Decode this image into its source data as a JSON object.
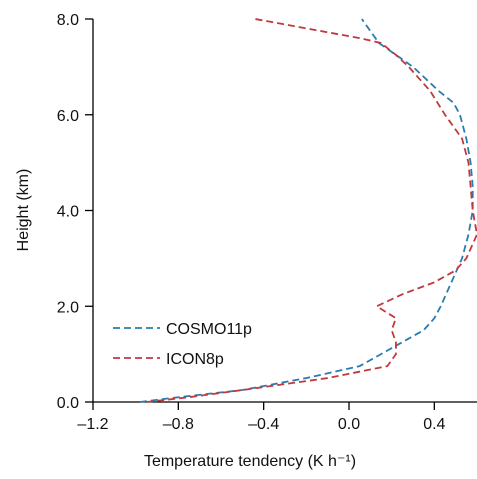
{
  "chart_data": {
    "type": "line",
    "x_label": "Temperature tendency (K h⁻¹)",
    "y_label": "Height (km)",
    "xlim": [
      -1.2,
      0.6
    ],
    "ylim": [
      0,
      8
    ],
    "xticks": [
      {
        "value": -1.2,
        "label": "–1.2"
      },
      {
        "value": -0.8,
        "label": "–0.8"
      },
      {
        "value": -0.4,
        "label": "–0.4"
      },
      {
        "value": 0,
        "label": "0.0"
      },
      {
        "value": 0.4,
        "label": "0.4"
      }
    ],
    "yticks": [
      {
        "value": 0,
        "label": "0.0"
      },
      {
        "value": 2,
        "label": "2.0"
      },
      {
        "value": 4,
        "label": "4.0"
      },
      {
        "value": 6,
        "label": "6.0"
      },
      {
        "value": 8,
        "label": "8.0"
      }
    ],
    "series": [
      {
        "name": "COSMO11p",
        "color": "#2b7bb0",
        "y": [
          0,
          0.1,
          0.25,
          0.5,
          0.75,
          1,
          1.25,
          1.5,
          1.75,
          2,
          2.5,
          3,
          3.5,
          4,
          4.5,
          5,
          5.5,
          6,
          6.25,
          6.5,
          7,
          7.5,
          7.75,
          8
        ],
        "values": [
          -0.98,
          -0.8,
          -0.5,
          -0.2,
          0.05,
          0.15,
          0.25,
          0.35,
          0.4,
          0.43,
          0.48,
          0.53,
          0.56,
          0.58,
          0.58,
          0.57,
          0.55,
          0.52,
          0.49,
          0.42,
          0.3,
          0.14,
          0.1,
          0.06
        ]
      },
      {
        "name": "ICON8p",
        "color": "#c1393c",
        "y": [
          0,
          0.1,
          0.25,
          0.5,
          0.75,
          1,
          1.25,
          1.5,
          1.75,
          2,
          2.25,
          2.5,
          2.75,
          3,
          3.5,
          4,
          4.5,
          5,
          5.5,
          6,
          6.5,
          7,
          7.25,
          7.5,
          7.6,
          8
        ],
        "values": [
          -0.95,
          -0.75,
          -0.5,
          -0.1,
          0.18,
          0.22,
          0.22,
          0.2,
          0.22,
          0.13,
          0.25,
          0.4,
          0.5,
          0.55,
          0.6,
          0.58,
          0.57,
          0.56,
          0.53,
          0.45,
          0.38,
          0.28,
          0.22,
          0.15,
          0.05,
          -0.44
        ]
      }
    ]
  }
}
